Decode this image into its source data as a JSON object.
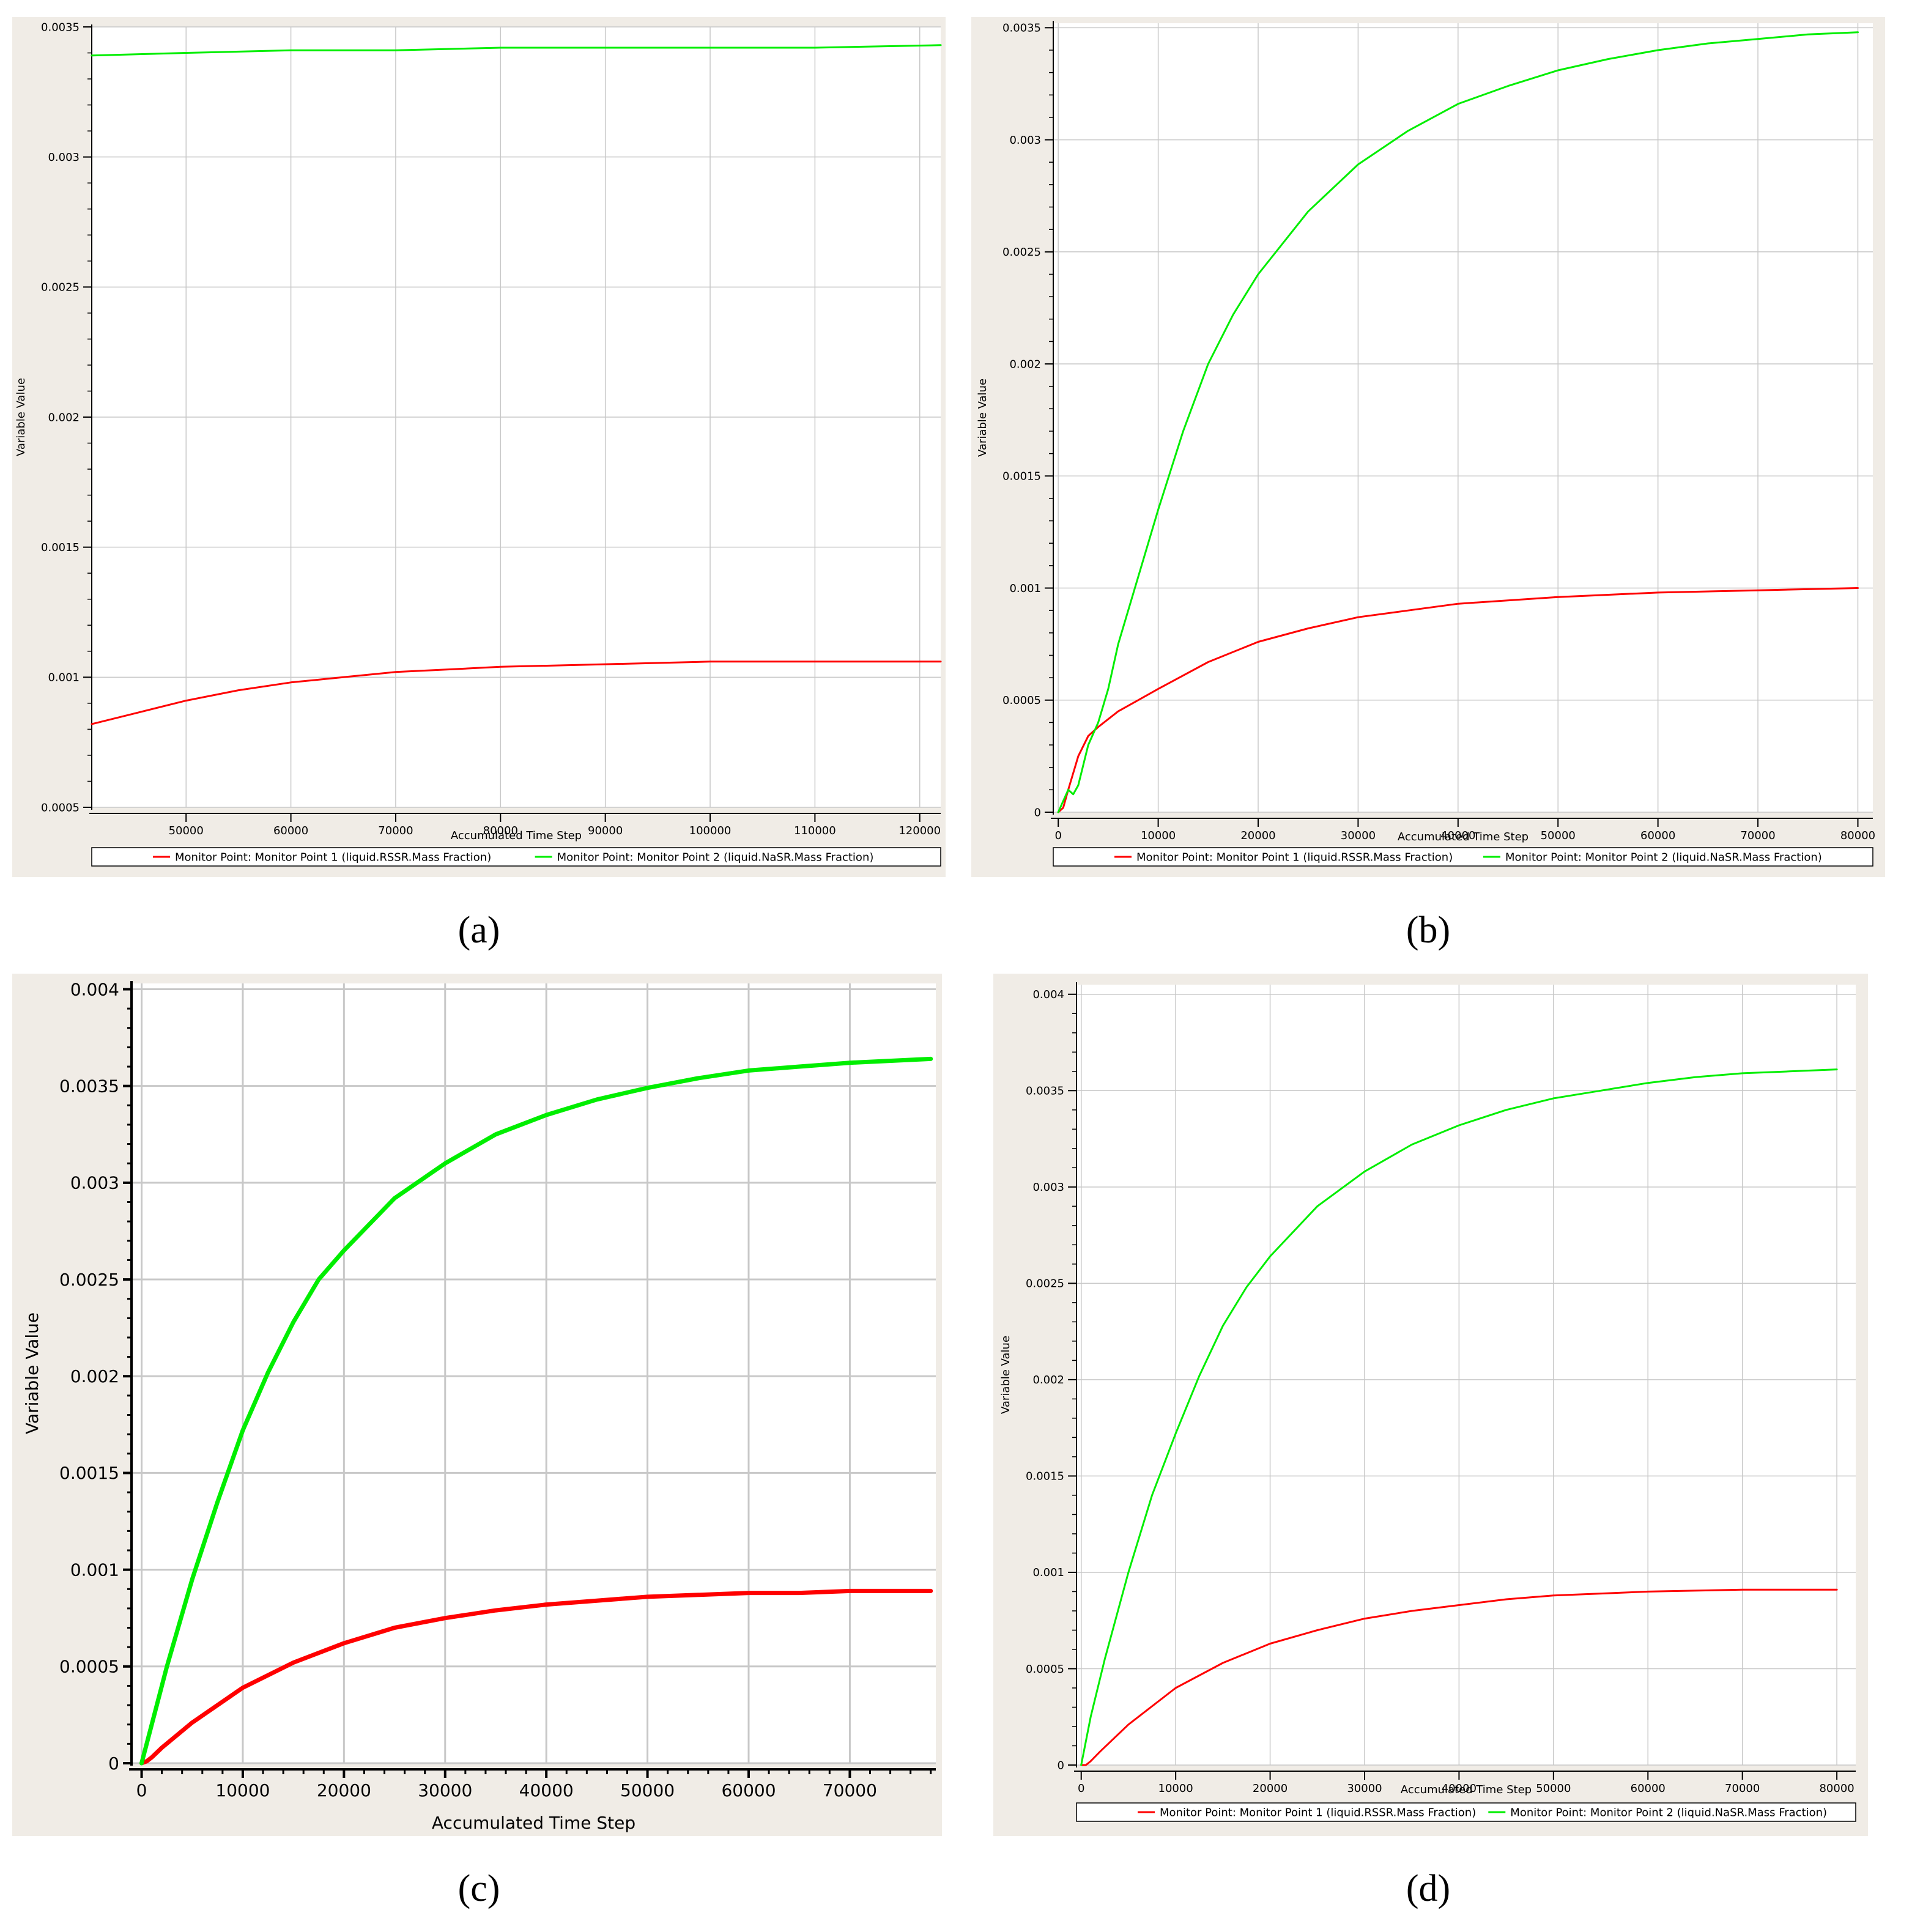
{
  "colors": {
    "series1": "#ff0000",
    "series2": "#00ee00",
    "panel_background": "#f0ece6",
    "grid": "#c8c8c8"
  },
  "chart_data": [
    {
      "type": "line",
      "label": "(a)",
      "xlabel": "Accumulated Time Step",
      "ylabel": "Variable Value",
      "xlim": [
        41000,
        122000
      ],
      "ylim": [
        0.0005,
        0.0035
      ],
      "xticks": [
        50000,
        60000,
        70000,
        80000,
        90000,
        100000,
        110000,
        120000
      ],
      "yticks": [
        0.0005,
        0.001,
        0.0015,
        0.002,
        0.0025,
        0.003,
        0.0035
      ],
      "xtick_labels": [
        "50000",
        "60000",
        "70000",
        "80000",
        "90000",
        "100000",
        "110000",
        "120000"
      ],
      "ytick_labels": [
        "0.0005",
        "0.001",
        "0.0015",
        "0.002",
        "0.0025",
        "0.003",
        "0.0035"
      ],
      "grid": true,
      "legend": "bottom",
      "series": [
        {
          "name": "Monitor Point: Monitor Point 1 (liquid.RSSR.Mass Fraction)",
          "color": "#ff0000",
          "x": [
            41000,
            45000,
            50000,
            55000,
            60000,
            65000,
            70000,
            75000,
            80000,
            90000,
            100000,
            110000,
            122000
          ],
          "y": [
            0.00082,
            0.00086,
            0.00091,
            0.00095,
            0.00098,
            0.001,
            0.00102,
            0.00103,
            0.00104,
            0.00105,
            0.00106,
            0.00106,
            0.00106
          ]
        },
        {
          "name": "Monitor Point: Monitor Point 2 (liquid.NaSR.Mass Fraction)",
          "color": "#00ee00",
          "x": [
            41000,
            50000,
            60000,
            70000,
            80000,
            90000,
            100000,
            110000,
            122000
          ],
          "y": [
            0.00339,
            0.0034,
            0.00341,
            0.00341,
            0.00342,
            0.00342,
            0.00342,
            0.00342,
            0.00343
          ]
        }
      ]
    },
    {
      "type": "line",
      "label": "(b)",
      "xlabel": "Accumulated Time Step",
      "ylabel": "Variable Value",
      "xlim": [
        -500,
        81500
      ],
      "ylim": [
        0,
        0.00352
      ],
      "xticks": [
        0,
        10000,
        20000,
        30000,
        40000,
        50000,
        60000,
        70000,
        80000
      ],
      "yticks": [
        0,
        0.0005,
        0.001,
        0.0015,
        0.002,
        0.0025,
        0.003,
        0.0035
      ],
      "xtick_labels": [
        "0",
        "10000",
        "20000",
        "30000",
        "40000",
        "50000",
        "60000",
        "70000",
        "80000"
      ],
      "ytick_labels": [
        "0",
        "0.0005",
        "0.001",
        "0.0015",
        "0.002",
        "0.0025",
        "0.003",
        "0.0035"
      ],
      "grid": true,
      "legend": "bottom",
      "series": [
        {
          "name": "Monitor Point: Monitor Point 1 (liquid.RSSR.Mass Fraction)",
          "color": "#ff0000",
          "x": [
            0,
            500,
            1000,
            2000,
            3000,
            4000,
            6000,
            8000,
            10000,
            15000,
            20000,
            25000,
            30000,
            35000,
            40000,
            50000,
            60000,
            70000,
            80000
          ],
          "y": [
            0,
            2e-05,
            0.0001,
            0.00025,
            0.00034,
            0.00038,
            0.00045,
            0.0005,
            0.00055,
            0.00067,
            0.00076,
            0.00082,
            0.00087,
            0.0009,
            0.00093,
            0.00096,
            0.00098,
            0.00099,
            0.001
          ]
        },
        {
          "name": "Monitor Point: Monitor Point 2 (liquid.NaSR.Mass Fraction)",
          "color": "#00ee00",
          "x": [
            0,
            500,
            1000,
            1500,
            2000,
            3000,
            4000,
            5000,
            6000,
            8000,
            10000,
            12500,
            15000,
            17500,
            20000,
            25000,
            30000,
            35000,
            40000,
            45000,
            50000,
            55000,
            60000,
            65000,
            70000,
            75000,
            80000
          ],
          "y": [
            0,
            5e-05,
            0.0001,
            8e-05,
            0.00012,
            0.0003,
            0.0004,
            0.00055,
            0.00075,
            0.00105,
            0.00135,
            0.0017,
            0.002,
            0.00222,
            0.0024,
            0.00268,
            0.00289,
            0.00304,
            0.00316,
            0.00324,
            0.00331,
            0.00336,
            0.0034,
            0.00343,
            0.00345,
            0.00347,
            0.00348
          ]
        }
      ]
    },
    {
      "type": "line",
      "label": "(c)",
      "xlabel": "Accumulated Time Step",
      "ylabel": "Variable Value",
      "xlim": [
        -1000,
        78500
      ],
      "ylim": [
        0,
        0.00403
      ],
      "xticks": [
        0,
        10000,
        20000,
        30000,
        40000,
        50000,
        60000,
        70000
      ],
      "yticks": [
        0,
        0.0005,
        0.001,
        0.0015,
        0.002,
        0.0025,
        0.003,
        0.0035,
        0.004
      ],
      "xtick_labels": [
        "0",
        "10000",
        "20000",
        "30000",
        "40000",
        "50000",
        "60000",
        "70000"
      ],
      "ytick_labels": [
        "0",
        "0.0005",
        "0.001",
        "0.0015",
        "0.002",
        "0.0025",
        "0.003",
        "0.0035",
        "0.004"
      ],
      "grid": true,
      "series": [
        {
          "color": "#ff0000",
          "x": [
            0,
            500,
            1000,
            2000,
            5000,
            10000,
            15000,
            20000,
            25000,
            30000,
            35000,
            40000,
            45000,
            50000,
            55000,
            60000,
            65000,
            70000,
            78000
          ],
          "y": [
            0,
            1e-05,
            3e-05,
            8e-05,
            0.00021,
            0.00039,
            0.00052,
            0.00062,
            0.0007,
            0.00075,
            0.00079,
            0.00082,
            0.00084,
            0.00086,
            0.00087,
            0.00088,
            0.00088,
            0.00089,
            0.00089
          ]
        },
        {
          "color": "#00ee00",
          "x": [
            0,
            1000,
            2500,
            5000,
            7500,
            10000,
            12500,
            15000,
            17500,
            20000,
            25000,
            30000,
            35000,
            40000,
            45000,
            50000,
            55000,
            60000,
            65000,
            70000,
            78000
          ],
          "y": [
            0,
            0.0002,
            0.0005,
            0.00095,
            0.00135,
            0.00172,
            0.00202,
            0.00228,
            0.0025,
            0.00265,
            0.00292,
            0.0031,
            0.00325,
            0.00335,
            0.00343,
            0.00349,
            0.00354,
            0.00358,
            0.0036,
            0.00362,
            0.00364
          ]
        }
      ]
    },
    {
      "type": "line",
      "label": "(d)",
      "xlabel": "Accumulated Time Step",
      "ylabel": "Variable Value",
      "xlim": [
        -500,
        82000
      ],
      "ylim": [
        0,
        0.00405
      ],
      "xticks": [
        0,
        10000,
        20000,
        30000,
        40000,
        50000,
        60000,
        70000,
        80000
      ],
      "yticks": [
        0,
        0.0005,
        0.001,
        0.0015,
        0.002,
        0.0025,
        0.003,
        0.0035,
        0.004
      ],
      "xtick_labels": [
        "0",
        "10000",
        "20000",
        "30000",
        "40000",
        "50000",
        "60000",
        "70000",
        "80000"
      ],
      "ytick_labels": [
        "0",
        "0.0005",
        "0.001",
        "0.0015",
        "0.002",
        "0.0025",
        "0.003",
        "0.0035",
        "0.004"
      ],
      "grid": true,
      "legend": "bottom",
      "series": [
        {
          "name": "Monitor Point: Monitor Point 1 (liquid.RSSR.Mass Fraction)",
          "color": "#ff0000",
          "x": [
            0,
            500,
            1000,
            2000,
            5000,
            10000,
            15000,
            20000,
            25000,
            30000,
            35000,
            40000,
            45000,
            50000,
            55000,
            60000,
            70000,
            80000
          ],
          "y": [
            0,
            0,
            2e-05,
            7e-05,
            0.00021,
            0.0004,
            0.00053,
            0.00063,
            0.0007,
            0.00076,
            0.0008,
            0.00083,
            0.00086,
            0.00088,
            0.00089,
            0.0009,
            0.00091,
            0.00091
          ]
        },
        {
          "name": "Monitor Point: Monitor Point 2 (liquid.NaSR.Mass Fraction)",
          "color": "#00ee00",
          "x": [
            0,
            1000,
            2500,
            5000,
            7500,
            10000,
            12500,
            15000,
            17500,
            20000,
            25000,
            30000,
            35000,
            40000,
            45000,
            50000,
            55000,
            60000,
            65000,
            70000,
            75000,
            80000
          ],
          "y": [
            0,
            0.00025,
            0.00055,
            0.001,
            0.0014,
            0.00172,
            0.00202,
            0.00228,
            0.00248,
            0.00264,
            0.0029,
            0.00308,
            0.00322,
            0.00332,
            0.0034,
            0.00346,
            0.0035,
            0.00354,
            0.00357,
            0.00359,
            0.0036,
            0.00361
          ]
        }
      ]
    }
  ]
}
